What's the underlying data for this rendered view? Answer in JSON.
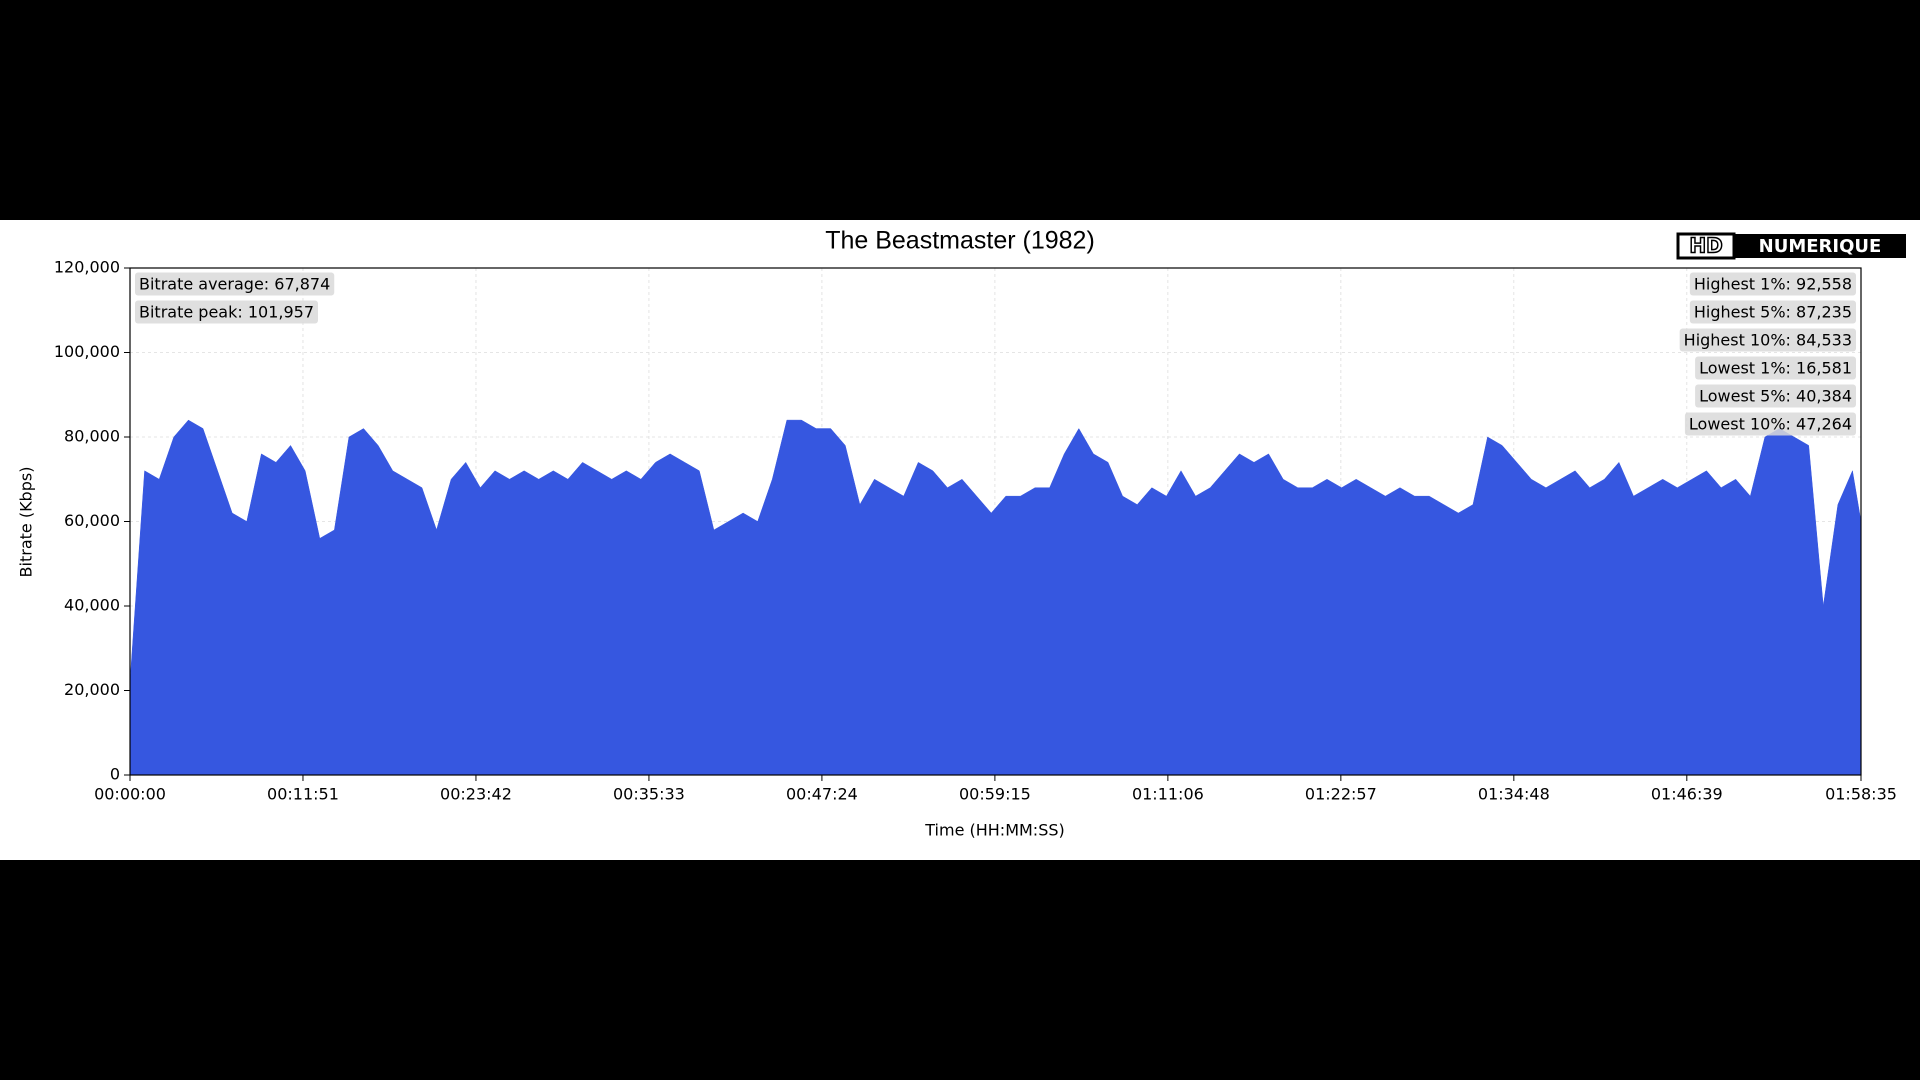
{
  "chart_data": {
    "type": "area",
    "title": "The Beastmaster (1982)",
    "logo": [
      "HD",
      "NUMERIQUE"
    ],
    "xlabel": "Time (HH:MM:SS)",
    "ylabel": "Bitrate (Kbps)",
    "color": "#3657e0",
    "grid": true,
    "xlim": [
      0,
      7115
    ],
    "ylim": [
      0,
      120000
    ],
    "xticks": [
      {
        "value": 0,
        "label": "00:00:00"
      },
      {
        "value": 711,
        "label": "00:11:51"
      },
      {
        "value": 1422,
        "label": "00:23:42"
      },
      {
        "value": 2133,
        "label": "00:35:33"
      },
      {
        "value": 2844,
        "label": "00:47:24"
      },
      {
        "value": 3555,
        "label": "00:59:15"
      },
      {
        "value": 4266,
        "label": "01:11:06"
      },
      {
        "value": 4977,
        "label": "01:22:57"
      },
      {
        "value": 5688,
        "label": "01:34:48"
      },
      {
        "value": 6399,
        "label": "01:46:39"
      },
      {
        "value": 7115,
        "label": "01:58:35"
      }
    ],
    "yticks": [
      0,
      {
        "value": 20000,
        "label": "20,000"
      },
      {
        "value": 40000,
        "label": "40,000"
      },
      {
        "value": 60000,
        "label": "60,000"
      },
      {
        "value": 80000,
        "label": "80,000"
      },
      {
        "value": 100000,
        "label": "100,000"
      },
      {
        "value": 120000,
        "label": "120,000"
      }
    ],
    "annotations_left": [
      "Bitrate average: 67,874",
      "Bitrate peak: 101,957"
    ],
    "annotations_right": [
      "Highest 1%: 92,558",
      "Highest 5%: 87,235",
      "Highest 10%: 84,533",
      "Lowest 1%: 16,581",
      "Lowest 5%: 40,384",
      "Lowest 10%: 47,264"
    ],
    "x": [
      0,
      60,
      120,
      180,
      240,
      300,
      360,
      420,
      480,
      540,
      600,
      660,
      720,
      780,
      840,
      900,
      960,
      1020,
      1080,
      1140,
      1200,
      1260,
      1320,
      1380,
      1440,
      1500,
      1560,
      1620,
      1680,
      1740,
      1800,
      1860,
      1920,
      1980,
      2040,
      2100,
      2160,
      2220,
      2280,
      2340,
      2400,
      2460,
      2520,
      2580,
      2640,
      2700,
      2760,
      2820,
      2880,
      2940,
      3000,
      3060,
      3120,
      3180,
      3240,
      3300,
      3360,
      3420,
      3480,
      3540,
      3600,
      3660,
      3720,
      3780,
      3840,
      3900,
      3960,
      4020,
      4080,
      4140,
      4200,
      4260,
      4320,
      4380,
      4440,
      4500,
      4560,
      4620,
      4680,
      4740,
      4800,
      4860,
      4920,
      4980,
      5040,
      5100,
      5160,
      5220,
      5280,
      5340,
      5400,
      5460,
      5520,
      5580,
      5640,
      5700,
      5760,
      5820,
      5880,
      5940,
      6000,
      6060,
      6120,
      6180,
      6240,
      6300,
      6360,
      6420,
      6480,
      6540,
      6600,
      6660,
      6720,
      6780,
      6840,
      6900,
      6960,
      7020,
      7080,
      7115
    ],
    "values": [
      22000,
      72000,
      70000,
      80000,
      84000,
      82000,
      72000,
      62000,
      60000,
      76000,
      74000,
      78000,
      72000,
      56000,
      58000,
      80000,
      82000,
      78000,
      72000,
      70000,
      68000,
      58000,
      70000,
      74000,
      68000,
      72000,
      70000,
      72000,
      70000,
      72000,
      70000,
      74000,
      72000,
      70000,
      72000,
      70000,
      74000,
      76000,
      74000,
      72000,
      58000,
      60000,
      62000,
      60000,
      70000,
      84000,
      84000,
      82000,
      82000,
      78000,
      64000,
      70000,
      68000,
      66000,
      74000,
      72000,
      68000,
      70000,
      66000,
      62000,
      66000,
      66000,
      68000,
      68000,
      76000,
      82000,
      76000,
      74000,
      66000,
      64000,
      68000,
      66000,
      72000,
      66000,
      68000,
      72000,
      76000,
      74000,
      76000,
      70000,
      68000,
      68000,
      70000,
      68000,
      70000,
      68000,
      66000,
      68000,
      66000,
      66000,
      64000,
      62000,
      64000,
      80000,
      78000,
      74000,
      70000,
      68000,
      70000,
      72000,
      68000,
      70000,
      74000,
      66000,
      68000,
      70000,
      68000,
      70000,
      72000,
      68000,
      70000,
      66000,
      80000,
      82000,
      80000,
      78000,
      40000,
      64000,
      72000,
      60000
    ]
  }
}
